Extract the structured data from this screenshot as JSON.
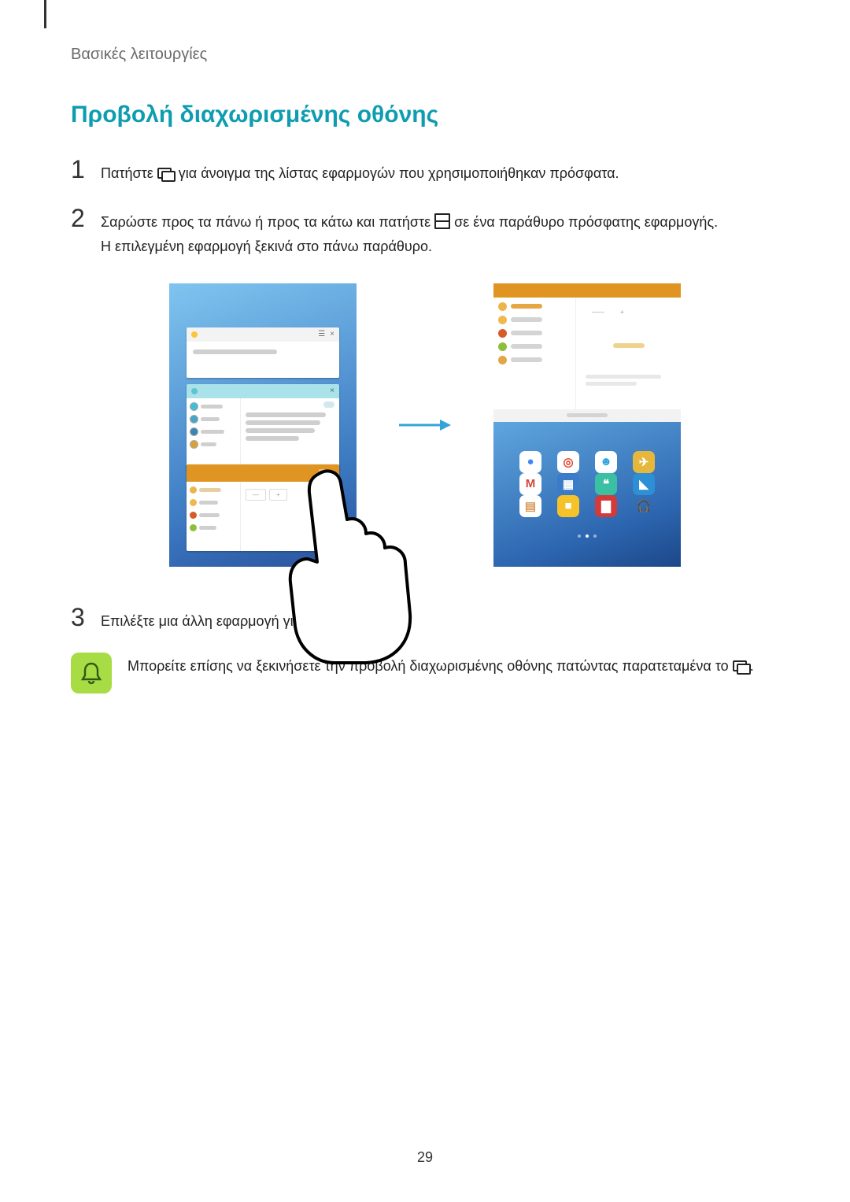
{
  "header": {
    "breadcrumb": "Βασικές λειτουργίες"
  },
  "section": {
    "title": "Προβολή διαχωρισμένης οθόνης"
  },
  "steps": {
    "s1": {
      "num": "1",
      "pre": "Πατήστε ",
      "post": " για άνοιγμα της λίστας εφαρμογών που χρησιμοποιήθηκαν πρόσφατα."
    },
    "s2": {
      "num": "2",
      "pre": "Σαρώστε προς τα πάνω ή προς τα κάτω και πατήστε ",
      "post": " σε ένα παράθυρο πρόσφατης εφαρμογής.",
      "line2": "Η επιλεγμένη εφαρμογή ξεκινά στο πάνω παράθυρο."
    },
    "s3": {
      "num": "3",
      "text": "Επιλέξτε μια άλλη εφαρμογή για εκκίνηση."
    }
  },
  "tip": {
    "pre": "Μπορείτε επίσης να ξεκινήσετε την προβολή διαχωρισμένης οθόνης πατώντας παρατεταμένα το ",
    "post": "."
  },
  "page_number": "29",
  "figure": {
    "arrow_color": "#34a3d8",
    "left": {
      "bg_gradient": [
        "#7fc5f0",
        "#3b78c1",
        "#28509a"
      ],
      "cardA_hdr_bg": "#f3f3f3",
      "cardB_hdr_bg": "#a9e2e8",
      "cardC_hdr_bg": "#e09522",
      "side_icon_colors": [
        "#44bcd4",
        "#45a6c7",
        "#3987b0",
        "#d9a03a"
      ]
    },
    "right": {
      "hdr_bg": "#e09522",
      "side_rows": [
        {
          "color": "#eeb44c",
          "selected": true
        },
        {
          "color": "#efb94f",
          "selected": false
        },
        {
          "color": "#d75b2a",
          "selected": false
        },
        {
          "color": "#8dbf3a",
          "selected": false
        },
        {
          "color": "#e2a645",
          "selected": false
        }
      ],
      "tab_plus": "+",
      "apps": [
        [
          {
            "bg": "#ffffff",
            "fg": "#4285f4",
            "glyph": "●"
          },
          {
            "bg": "#ffffff",
            "fg": "#e2442c",
            "glyph": "◎"
          },
          {
            "bg": "#ffffff",
            "fg": "#2aa5e0",
            "glyph": "☻"
          },
          {
            "bg": "#e6b73d",
            "fg": "#ffffff",
            "glyph": "✈"
          }
        ],
        [
          {
            "bg": "#ffffff",
            "fg": "#d44638",
            "glyph": "M"
          },
          {
            "bg": "#3a7cc8",
            "fg": "#ffffff",
            "glyph": "▦"
          },
          {
            "bg": "#3cc0a3",
            "fg": "#ffffff",
            "glyph": "❝"
          },
          {
            "bg": "#2d8fd6",
            "fg": "#ffffff",
            "glyph": "◣"
          }
        ],
        [
          {
            "bg": "#ffffff",
            "fg": "#d8985a",
            "glyph": "▤"
          },
          {
            "bg": "#f5c329",
            "fg": "#ffffff",
            "glyph": "■"
          },
          {
            "bg": "#d43a3a",
            "fg": "#ffffff",
            "glyph": "▇"
          },
          {
            "bg": "transparent",
            "fg": "#e68a2e",
            "glyph": "🎧"
          }
        ]
      ]
    }
  }
}
